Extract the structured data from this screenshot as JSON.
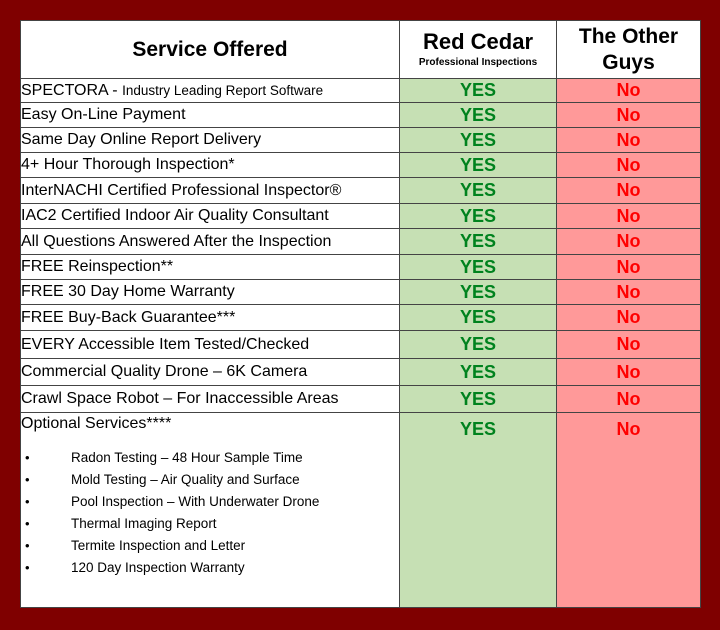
{
  "colors": {
    "frame": "#7f0000",
    "yes_bg": "#c6e0b4",
    "yes_text": "#00821e",
    "no_bg": "#ff9999",
    "no_text": "#ff0000"
  },
  "header": {
    "service": "Service Offered",
    "red_cedar_title": "Red Cedar",
    "red_cedar_subtitle": "Professional Inspections",
    "other_line1": "The Other",
    "other_line2": "Guys"
  },
  "rows": [
    {
      "service_main": "SPECTORA - ",
      "service_small": "Industry Leading Report Software",
      "red_cedar": "YES",
      "other": "No"
    },
    {
      "service_main": "Easy On-Line Payment",
      "service_small": "",
      "red_cedar": "YES",
      "other": "No"
    },
    {
      "service_main": "Same Day Online Report Delivery",
      "service_small": "",
      "red_cedar": "YES",
      "other": "No"
    },
    {
      "service_main": "4+ Hour Thorough Inspection*",
      "service_small": "",
      "red_cedar": "YES",
      "other": "No"
    },
    {
      "service_main": "InterNACHI Certified Professional Inspector®",
      "service_small": "",
      "red_cedar": "YES",
      "other": "No"
    },
    {
      "service_main": "IAC2 Certified Indoor Air Quality Consultant",
      "service_small": "",
      "red_cedar": "YES",
      "other": "No"
    },
    {
      "service_main": "All Questions Answered After the Inspection",
      "service_small": "",
      "red_cedar": "YES",
      "other": "No"
    },
    {
      "service_main": "FREE Reinspection**",
      "service_small": "",
      "red_cedar": "YES",
      "other": "No"
    },
    {
      "service_main": "FREE 30 Day Home Warranty",
      "service_small": "",
      "red_cedar": "YES",
      "other": "No"
    },
    {
      "service_main": "FREE Buy-Back Guarantee***",
      "service_small": "",
      "red_cedar": "YES",
      "other": "No"
    },
    {
      "service_main": "EVERY Accessible Item Tested/Checked",
      "service_small": "",
      "red_cedar": "YES",
      "other": "No"
    },
    {
      "service_main": "Commercial Quality Drone – 6K Camera",
      "service_small": "",
      "red_cedar": "YES",
      "other": "No"
    },
    {
      "service_main": "Crawl Space Robot – For Inaccessible Areas",
      "service_small": "",
      "red_cedar": "YES",
      "other": "No"
    }
  ],
  "optional": {
    "title": "Optional Services****",
    "red_cedar": "YES",
    "other": "No",
    "items": [
      "Radon Testing – 48 Hour Sample Time",
      "Mold Testing – Air Quality and Surface",
      "Pool Inspection – With Underwater Drone",
      "Thermal Imaging Report",
      "Termite Inspection and Letter",
      "120 Day Inspection Warranty"
    ],
    "bullet": "•"
  }
}
